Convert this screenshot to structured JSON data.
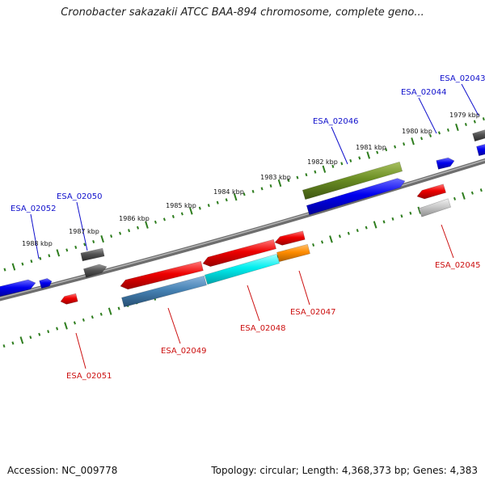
{
  "title": "Cronobacter sakazakii ATCC BAA-894 chromosome, complete geno...",
  "footer": {
    "accession": "Accession: NC_009778",
    "topology": "Topology: circular; Length: 4,368,373 bp; Genes: 4,383"
  },
  "colors": {
    "backbone": "#7a7a7a",
    "ruler": "#2e7d1e",
    "forward_label": "#1010cc",
    "reverse_label": "#cc1010"
  },
  "kbp_labels": [
    "1988 kbp",
    "1987 kbp",
    "1986 kbp",
    "1985 kbp",
    "1984 kbp",
    "1983 kbp",
    "1982 kbp",
    "1981 kbp",
    "1980 kbp",
    "1979 kbp"
  ],
  "genes": [
    {
      "label": "ESA_02052",
      "strand": "forward",
      "color": "#0000ee"
    },
    {
      "label": "ESA_02050",
      "strand": "forward",
      "color": "#555555"
    },
    {
      "label": "ESA_02046",
      "strand": "forward",
      "color": "#6b8e23"
    },
    {
      "label": "ESA_02044",
      "strand": "forward",
      "color": "#0000ee"
    },
    {
      "label": "ESA_02043",
      "strand": "forward",
      "color": "#555555"
    },
    {
      "label": "ESA_02051",
      "strand": "reverse",
      "color": "#ee0000"
    },
    {
      "label": "ESA_02049",
      "strand": "reverse",
      "color": "#ee0000"
    },
    {
      "label": "ESA_02048",
      "strand": "reverse",
      "color": "#00e5ee"
    },
    {
      "label": "ESA_02047",
      "strand": "reverse",
      "color": "#ff8c00"
    },
    {
      "label": "ESA_02045",
      "strand": "reverse",
      "color": "#ee0000"
    }
  ]
}
